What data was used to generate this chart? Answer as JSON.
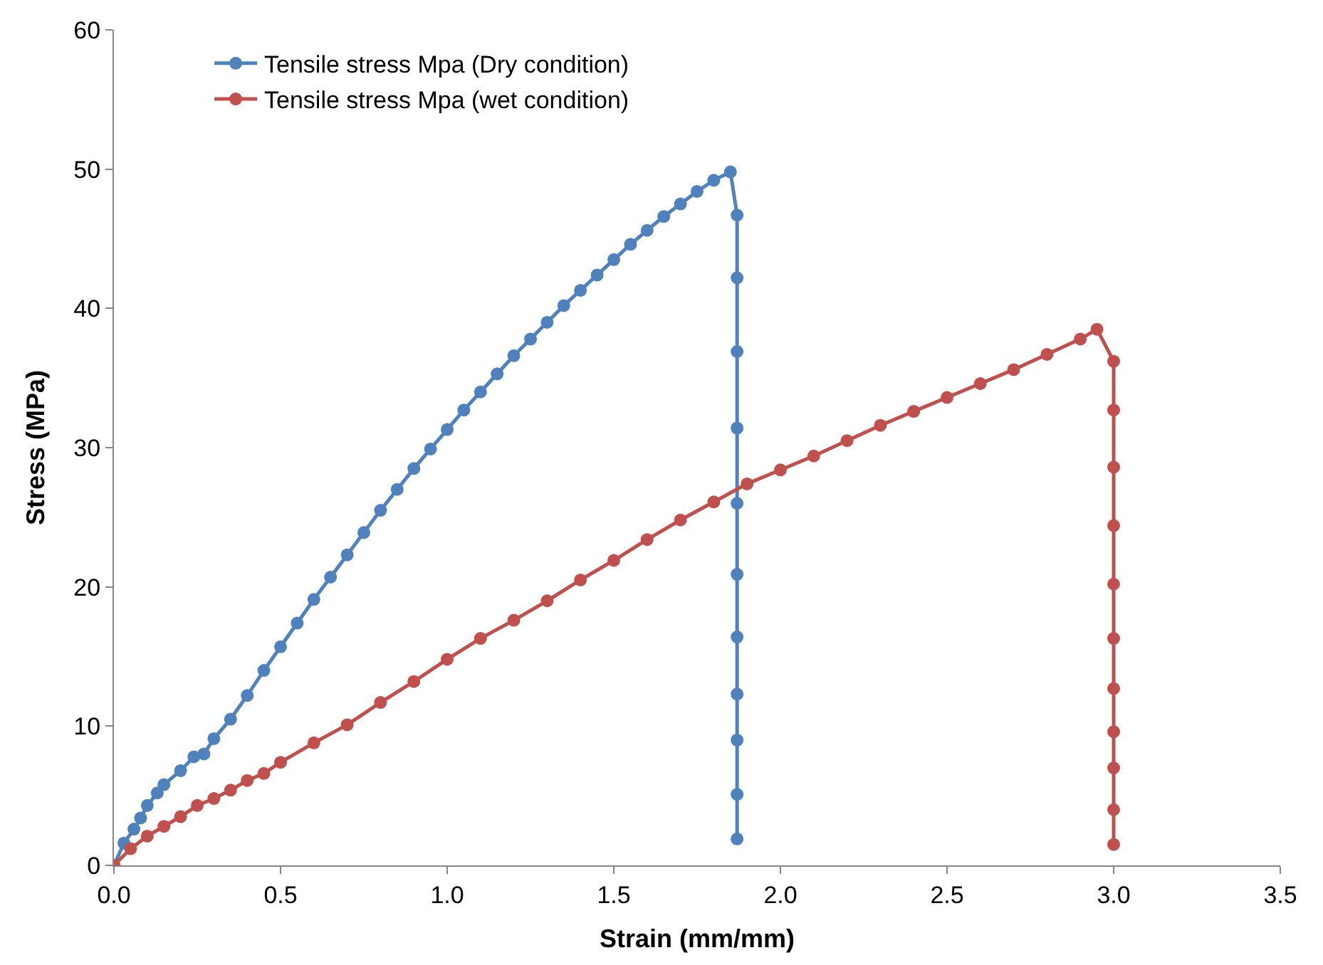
{
  "chart_data": {
    "type": "line",
    "xlabel": "Strain (mm/mm)",
    "ylabel": "Stress (MPa)",
    "xlim": [
      0,
      3.5
    ],
    "xticks": [
      {
        "value": 0,
        "label": "0.0"
      },
      {
        "value": 0.5,
        "label": "0.5"
      },
      {
        "value": 1,
        "label": "1.0"
      },
      {
        "value": 1.5,
        "label": "1.5"
      },
      {
        "value": 2,
        "label": "2.0"
      },
      {
        "value": 2.5,
        "label": "2.5"
      },
      {
        "value": 3,
        "label": "3.0"
      },
      {
        "value": 3.5,
        "label": "3.5"
      }
    ],
    "ylim": [
      0,
      60
    ],
    "yticks": [
      0,
      10,
      20,
      30,
      40,
      50,
      60
    ],
    "legend": "top left",
    "marker": "circle",
    "line_style": "solid",
    "series": [
      {
        "name": "Tensile stress Mpa (Dry condition)",
        "color": "#4f81bd",
        "x": [
          0,
          0.03,
          0.06,
          0.08,
          0.1,
          0.13,
          0.15,
          0.2,
          0.24,
          0.27,
          0.3,
          0.35,
          0.4,
          0.45,
          0.5,
          0.55,
          0.6,
          0.65,
          0.7,
          0.75,
          0.8,
          0.85,
          0.9,
          0.95,
          1.0,
          1.05,
          1.1,
          1.15,
          1.2,
          1.25,
          1.3,
          1.35,
          1.4,
          1.45,
          1.5,
          1.55,
          1.6,
          1.65,
          1.7,
          1.75,
          1.8,
          1.85,
          1.87,
          1.87,
          1.87,
          1.87,
          1.87,
          1.87,
          1.87,
          1.87,
          1.87,
          1.87,
          1.87
        ],
        "values": [
          0,
          1.6,
          2.6,
          3.4,
          4.3,
          5.2,
          5.8,
          6.8,
          7.8,
          8.0,
          9.1,
          10.5,
          12.2,
          14.0,
          15.7,
          17.4,
          19.1,
          20.7,
          22.3,
          23.9,
          25.5,
          27.0,
          28.5,
          29.9,
          31.3,
          32.7,
          34.0,
          35.3,
          36.6,
          37.8,
          39.0,
          40.2,
          41.3,
          42.4,
          43.5,
          44.6,
          45.6,
          46.6,
          47.5,
          48.4,
          49.2,
          49.8,
          46.7,
          42.2,
          36.9,
          31.4,
          26.0,
          20.9,
          16.4,
          12.3,
          9.0,
          5.1,
          1.9
        ]
      },
      {
        "name": "Tensile stress Mpa (wet condition)",
        "color": "#c0504d",
        "x": [
          0,
          0.05,
          0.1,
          0.15,
          0.2,
          0.25,
          0.3,
          0.35,
          0.4,
          0.45,
          0.5,
          0.6,
          0.7,
          0.8,
          0.9,
          1.0,
          1.1,
          1.2,
          1.3,
          1.4,
          1.5,
          1.6,
          1.7,
          1.8,
          1.9,
          2.0,
          2.1,
          2.2,
          2.3,
          2.4,
          2.5,
          2.6,
          2.7,
          2.8,
          2.9,
          2.95,
          3.0,
          3.0,
          3.0,
          3.0,
          3.0,
          3.0,
          3.0,
          3.0,
          3.0,
          3.0,
          3.0
        ],
        "values": [
          0,
          1.2,
          2.1,
          2.8,
          3.5,
          4.3,
          4.8,
          5.4,
          6.1,
          6.6,
          7.4,
          8.8,
          10.1,
          11.7,
          13.2,
          14.8,
          16.3,
          17.6,
          19.0,
          20.5,
          21.9,
          23.4,
          24.8,
          26.1,
          27.4,
          28.4,
          29.4,
          30.5,
          31.6,
          32.6,
          33.6,
          34.6,
          35.6,
          36.7,
          37.8,
          38.5,
          36.2,
          32.7,
          28.6,
          24.4,
          20.2,
          16.3,
          12.7,
          9.6,
          7.0,
          4.0,
          1.5
        ]
      }
    ]
  }
}
